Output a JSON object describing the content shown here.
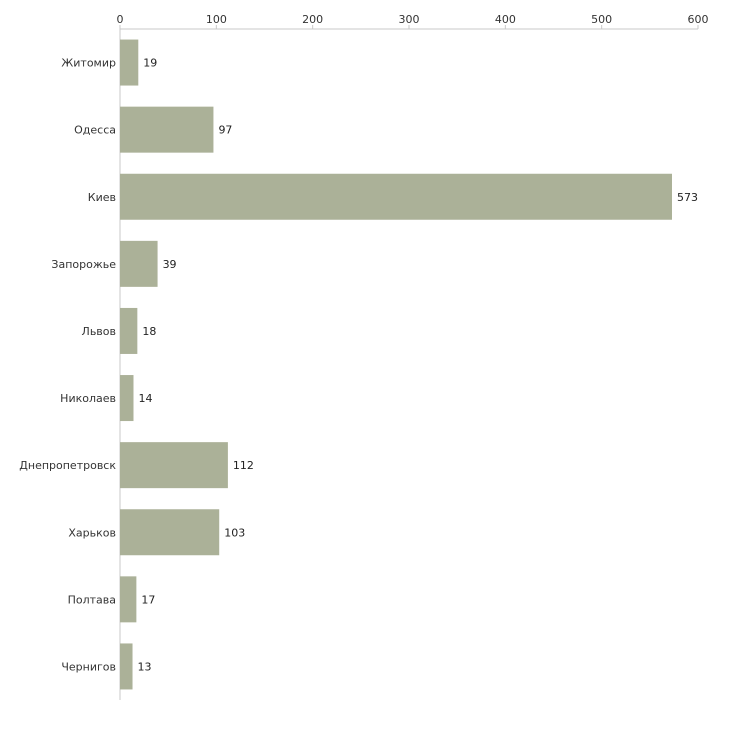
{
  "chart_data": {
    "type": "bar",
    "orientation": "horizontal",
    "title": "",
    "xlabel": "",
    "ylabel": "",
    "xlim": [
      0,
      600
    ],
    "x_ticks": [
      0,
      100,
      200,
      300,
      400,
      500,
      600
    ],
    "x_axis_position": "top",
    "grid": false,
    "legend": "none",
    "bar_color": "#abb198",
    "categories": [
      "Житомир",
      "Одесса",
      "Киев",
      "Запорожье",
      "Львов",
      "Николаев",
      "Днепропетровск",
      "Харьков",
      "Полтава",
      "Чернигов"
    ],
    "values": [
      19,
      97,
      573,
      39,
      18,
      14,
      112,
      103,
      17,
      13
    ]
  }
}
